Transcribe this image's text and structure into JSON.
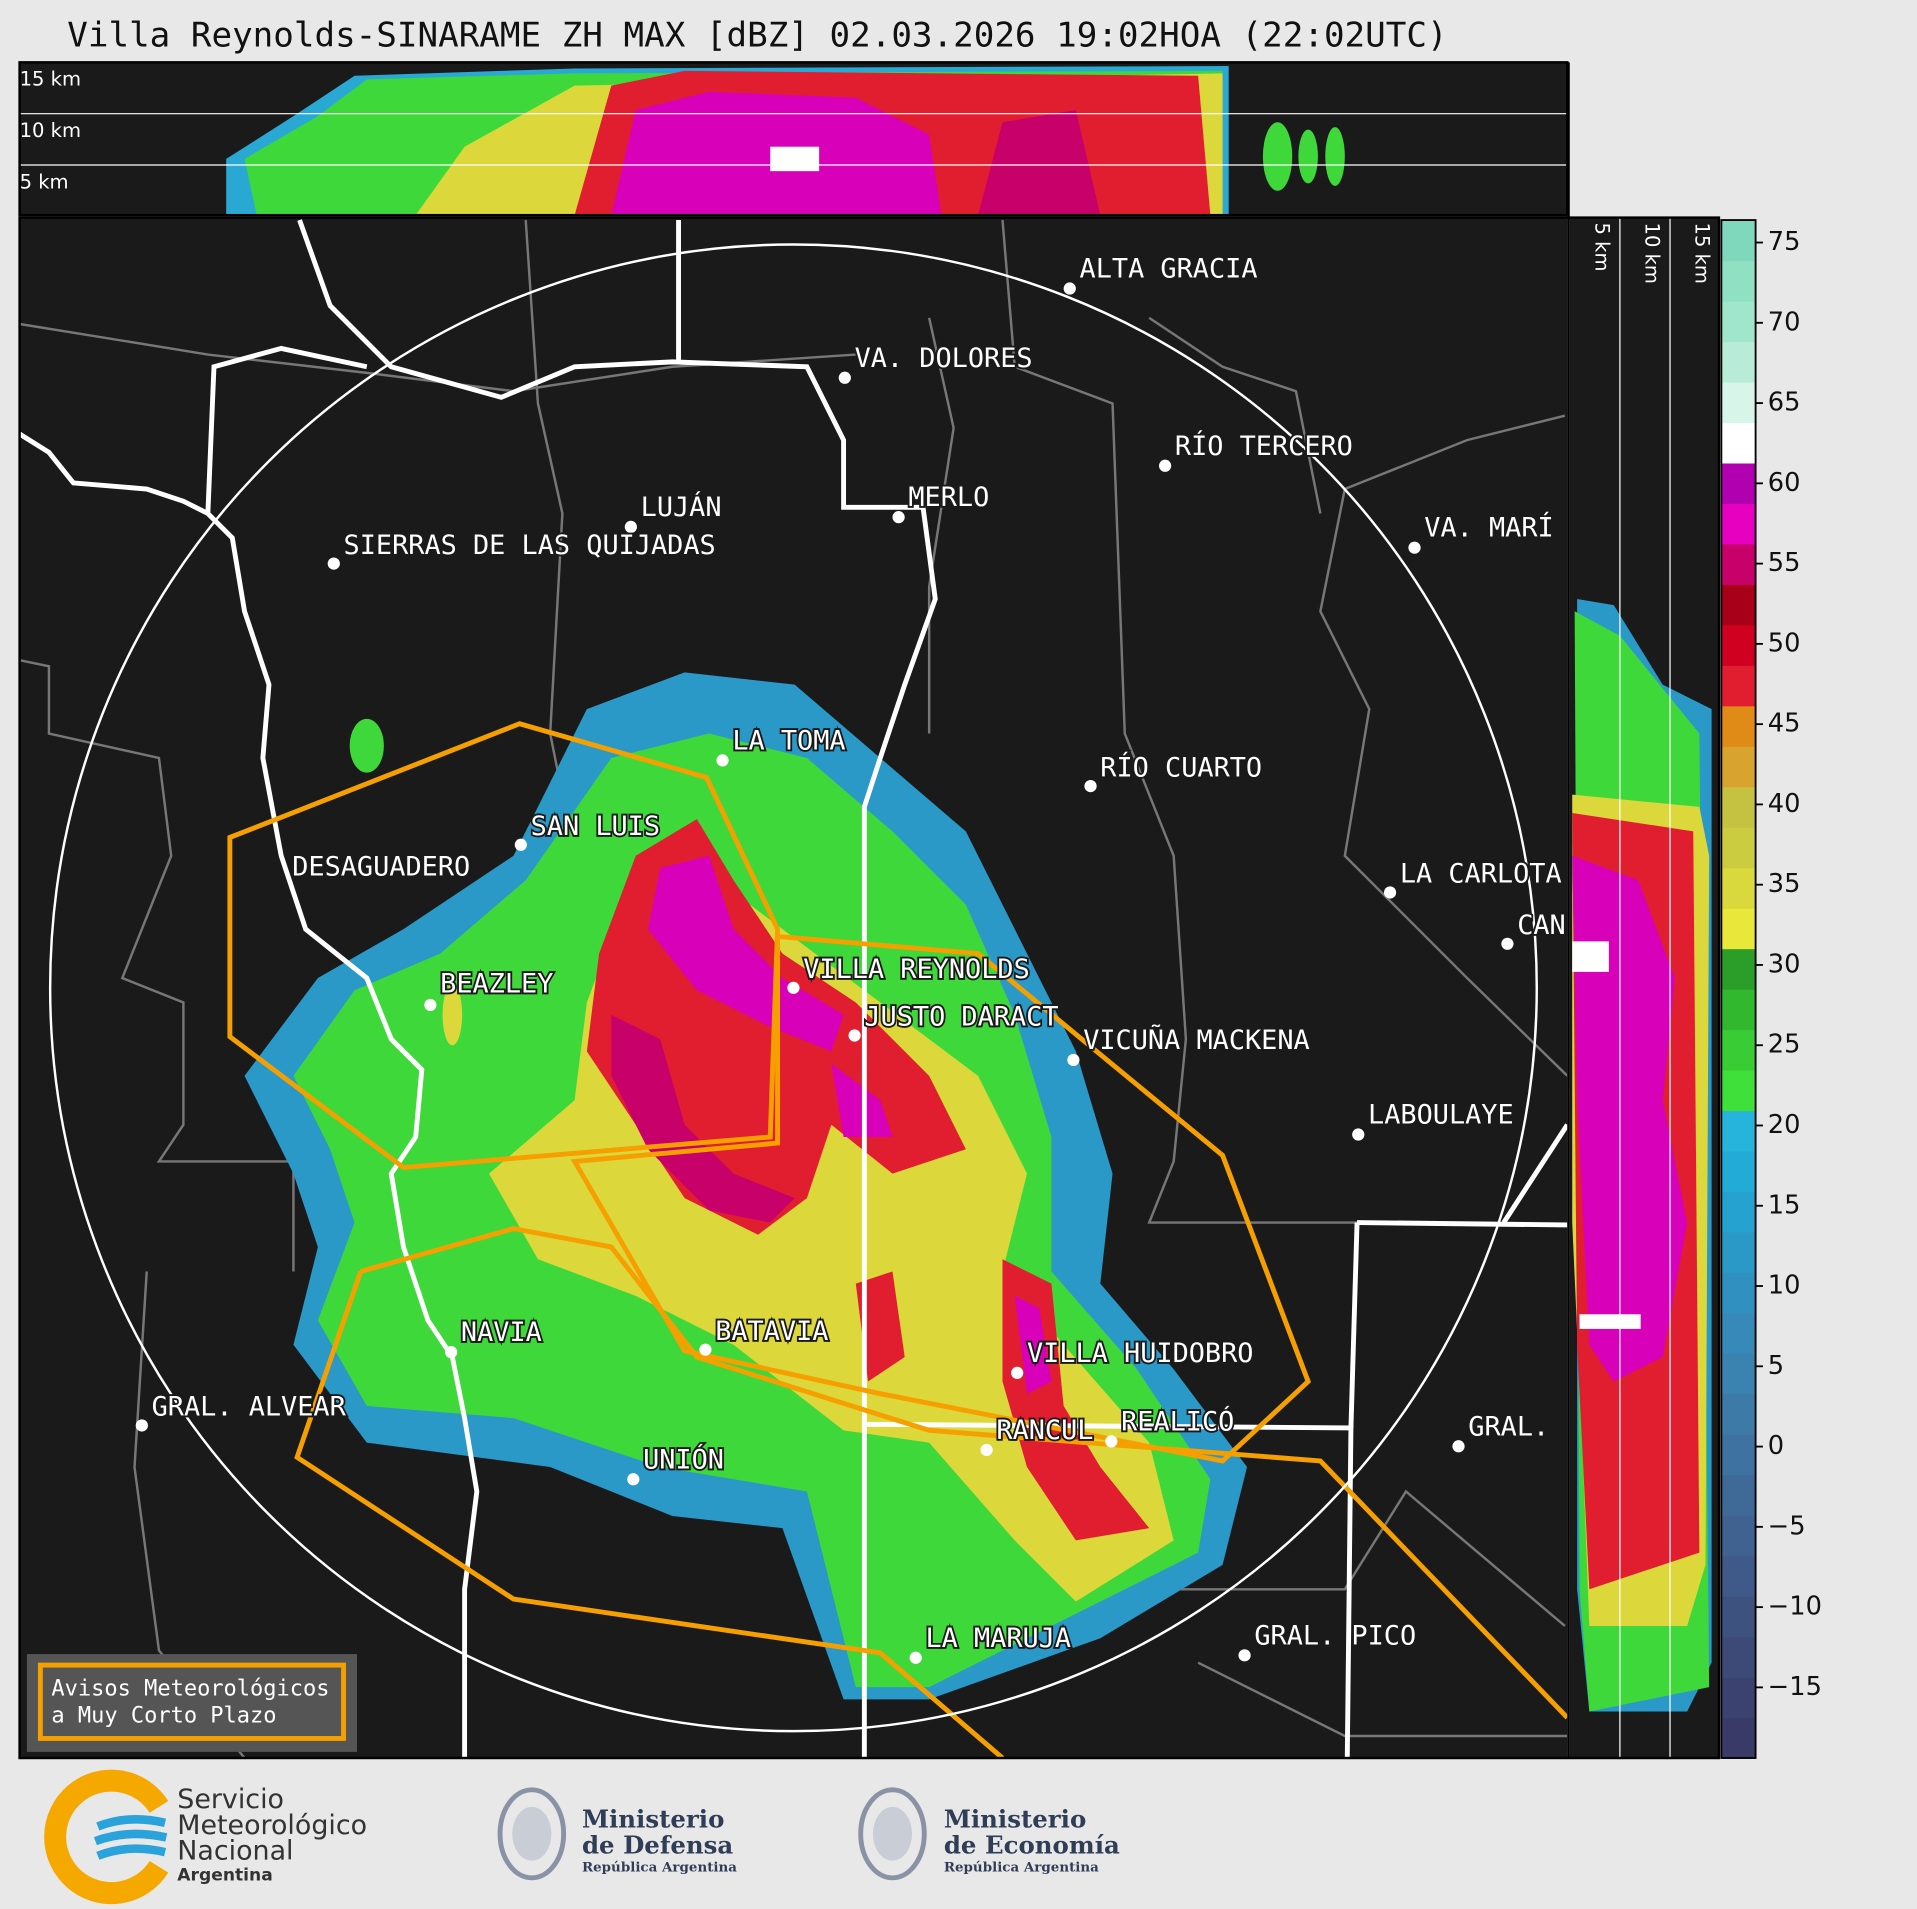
{
  "title": "Villa Reynolds-SINARAME ZH MAX [dBZ] 02.03.2026 19:02HOA (22:02UTC)",
  "top_panel": {
    "height_labels": [
      "15 km",
      "10 km",
      "5 km"
    ]
  },
  "side_panel": {
    "height_labels": [
      "5 km",
      "10 km",
      "15 km"
    ]
  },
  "colorbar": {
    "ylim": [
      -19.4,
      76.4
    ],
    "yticks": [
      75,
      70,
      65,
      60,
      55,
      50,
      45,
      40,
      35,
      30,
      25,
      20,
      15,
      10,
      5,
      0,
      {
        "value": -5,
        "label": "−5"
      },
      {
        "value": -10,
        "label": "−10"
      },
      {
        "value": -15,
        "label": "−15"
      }
    ],
    "colors": [
      "#3a3a68",
      "#3c4270",
      "#3d4a78",
      "#3e5280",
      "#3f5a88",
      "#3f6290",
      "#3f6a98",
      "#3e72a0",
      "#3d7aa8",
      "#3a82b0",
      "#3689b8",
      "#3091c0",
      "#2a99c8",
      "#25a2cf",
      "#22abd6",
      "#27b4dc",
      "#3fe03a",
      "#3acc35",
      "#32b82f",
      "#2a9e28",
      "#e9e83a",
      "#d9d83c",
      "#cccc40",
      "#c4c240",
      "#d9a330",
      "#e08a18",
      "#e01e30",
      "#d00020",
      "#a80018",
      "#c8006a",
      "#e800c0",
      "#b000b0",
      "#ffffff",
      "#d8f5ea",
      "#b8ecd8",
      "#a0e6cc",
      "#90e0c4",
      "#80d8bc"
    ]
  },
  "cities": [
    "ALTA GRACIA",
    "VA. DOLORES",
    "RÍO TERCERO",
    "LUJÁN",
    "MERLO",
    "SIERRAS DE LAS QUIJADAS",
    "VA. MARÍ",
    "LA TOMA",
    "RÍO CUARTO",
    "SAN LUIS",
    "DESAGUADERO",
    "LA CARLOTA",
    "CAN",
    "BEAZLEY",
    "VILLA REYNOLDS",
    "JUSTO DARACT",
    "VICUÑA MACKENA",
    "LABOULAYE",
    "NAVIA",
    "BATAVIA",
    "VILLA HUIDOBRO",
    "GRAL. ALVEAR",
    "RANCUL",
    "REALICÓ",
    "GRAL.",
    "UNIÓN",
    "LA MARUJA",
    "GRAL. PICO"
  ],
  "warning_box": {
    "lines": [
      "Avisos Meteorológicos",
      "a Muy Corto Plazo"
    ]
  },
  "footer": {
    "smn": [
      "Servicio",
      "Meteorológico",
      "Nacional",
      "Argentina"
    ],
    "defensa": [
      "Ministerio",
      "de Defensa",
      "República Argentina"
    ],
    "economia": [
      "Ministerio",
      "de Economía",
      "República Argentina"
    ]
  }
}
